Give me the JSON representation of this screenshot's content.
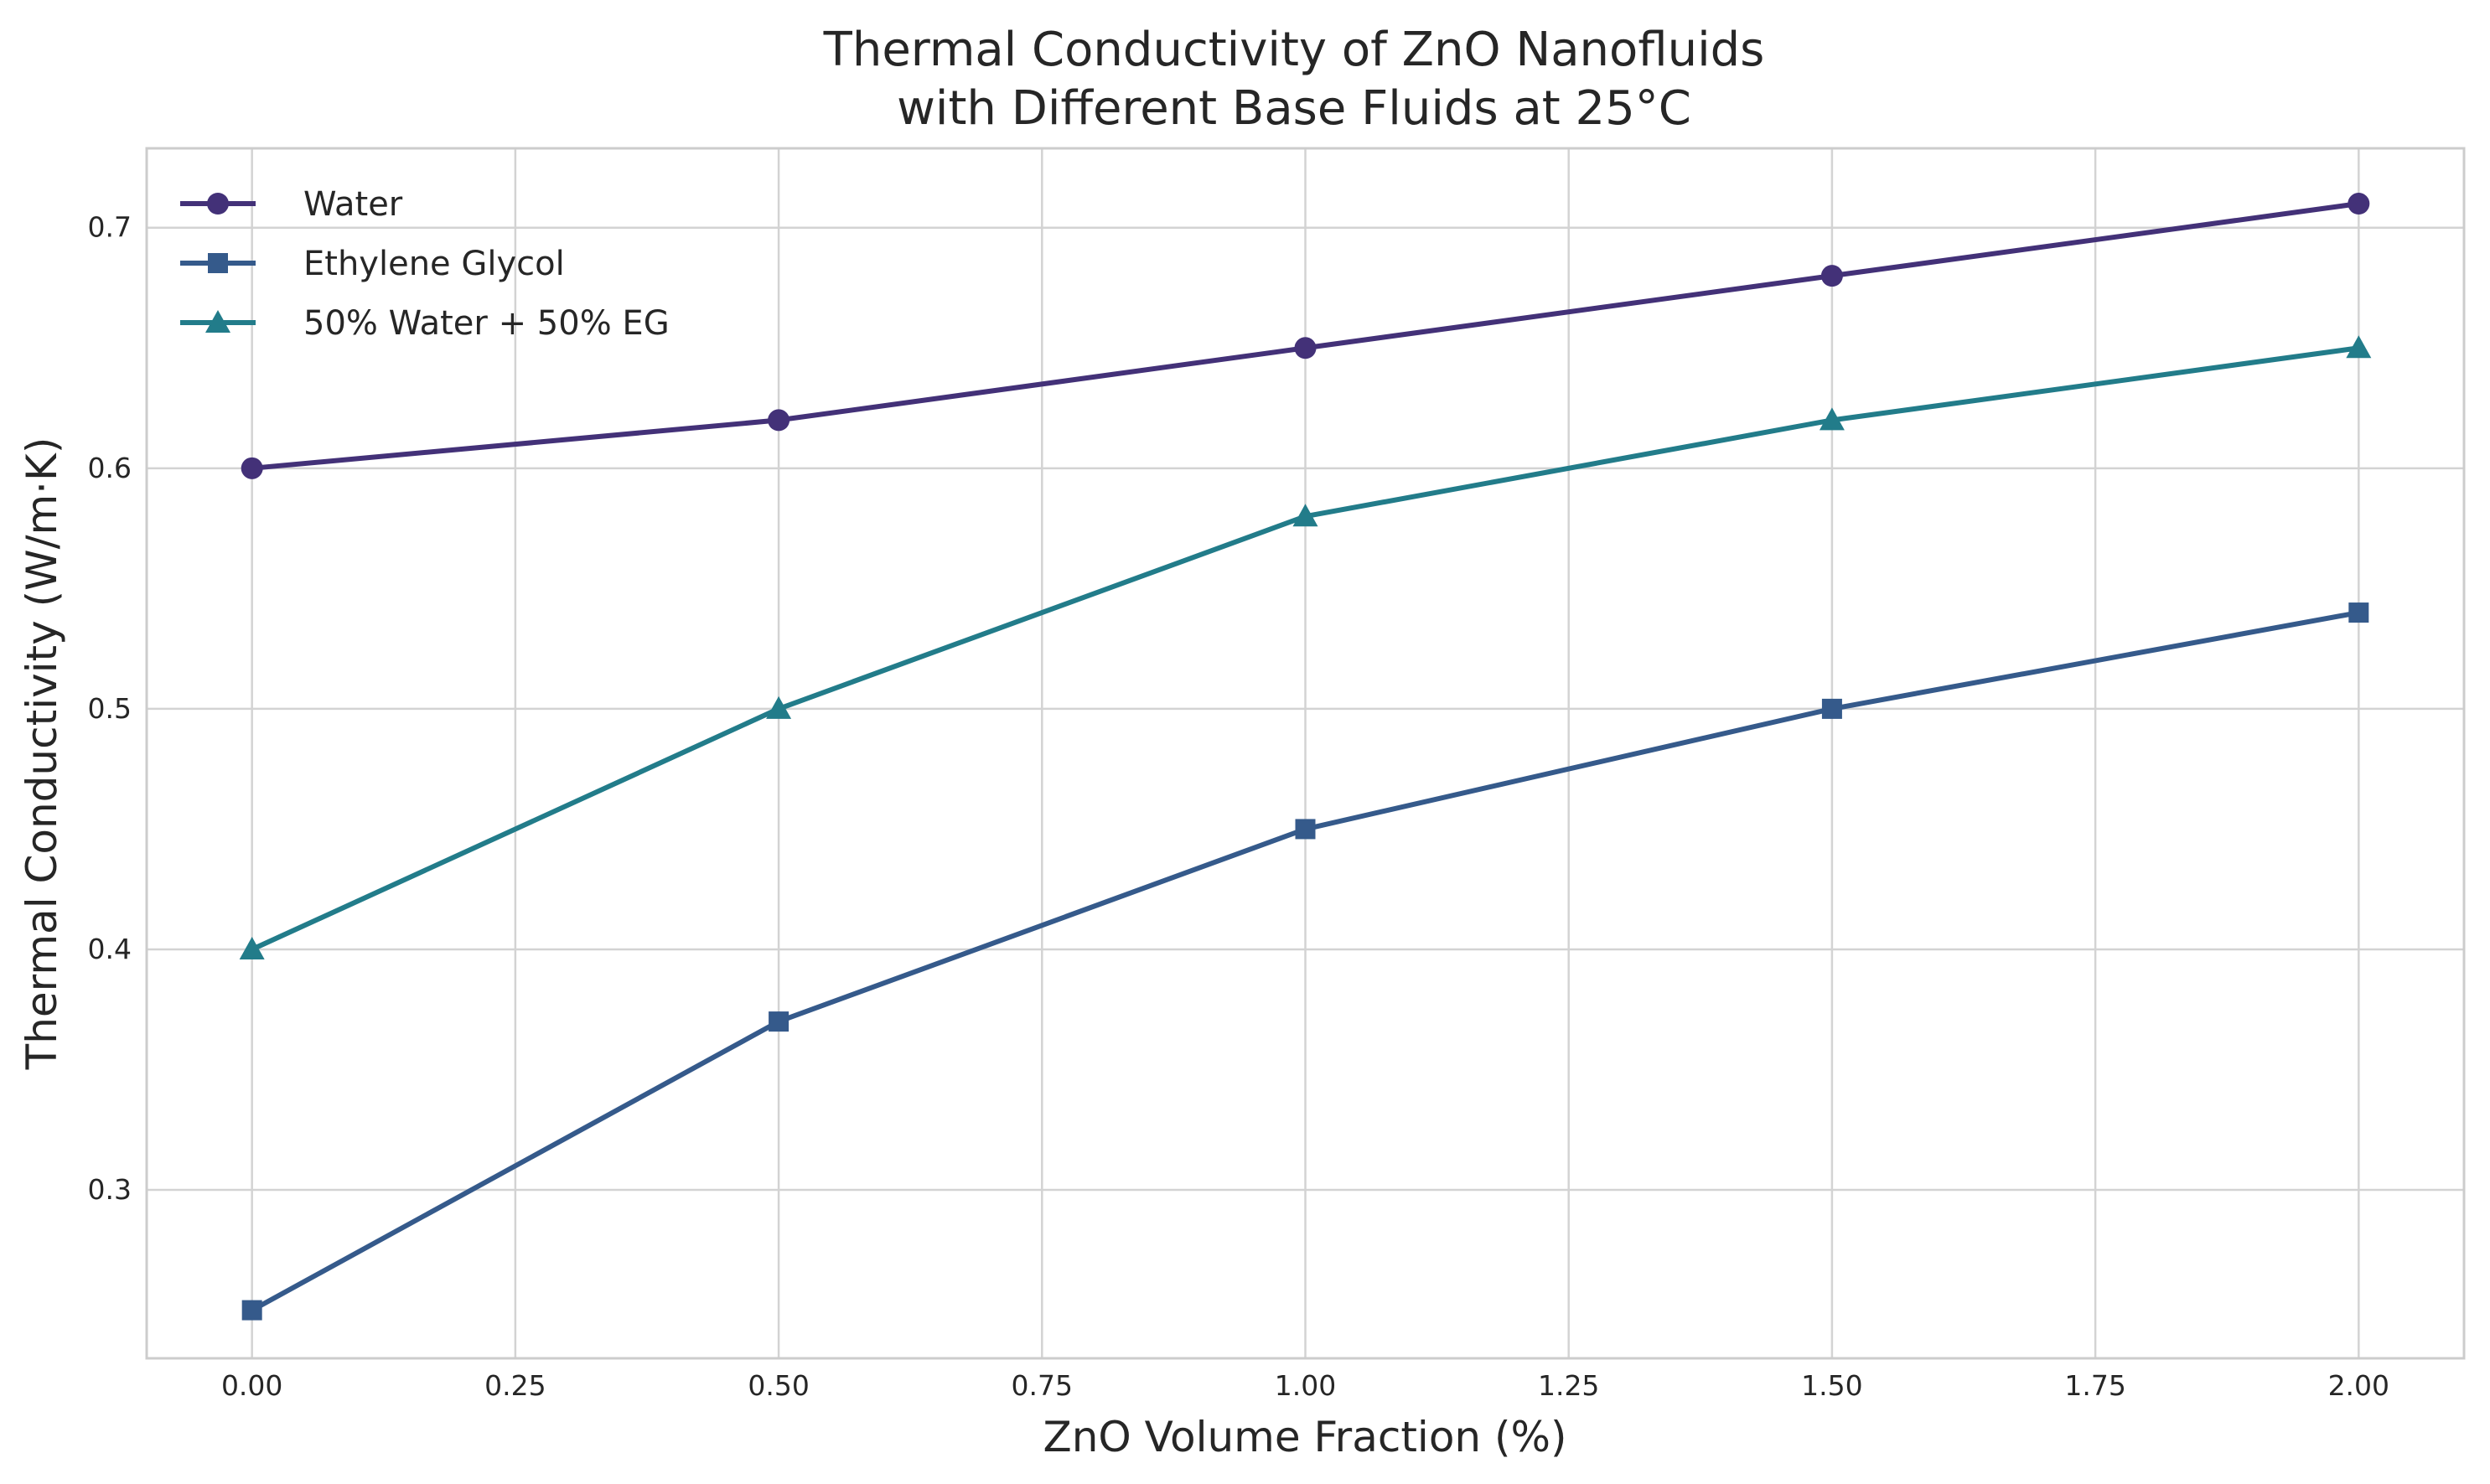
{
  "chart_data": {
    "type": "line",
    "title": "Thermal Conductivity of ZnO Nanofluids",
    "title_line2": "with Different Base Fluids at 25°C",
    "xlabel": "ZnO Volume Fraction (%)",
    "ylabel": "Thermal Conductivity (W/m·K)",
    "x": [
      0.0,
      0.5,
      1.0,
      1.5,
      2.0
    ],
    "xlim": [
      -0.1,
      2.1
    ],
    "ylim": [
      0.23,
      0.733
    ],
    "xticks": [
      0.0,
      0.25,
      0.5,
      0.75,
      1.0,
      1.25,
      1.5,
      1.75,
      2.0
    ],
    "xtick_labels": [
      "0.00",
      "0.25",
      "0.50",
      "0.75",
      "1.00",
      "1.25",
      "1.50",
      "1.75",
      "2.00"
    ],
    "yticks": [
      0.3,
      0.4,
      0.5,
      0.6,
      0.7
    ],
    "ytick_labels": [
      "0.3",
      "0.4",
      "0.5",
      "0.6",
      "0.7"
    ],
    "grid": true,
    "legend_position": "top-left",
    "series": [
      {
        "name": "Water",
        "values": [
          0.6,
          0.62,
          0.65,
          0.68,
          0.71
        ],
        "color": "#433178",
        "marker": "circle"
      },
      {
        "name": "Ethylene Glycol",
        "values": [
          0.25,
          0.37,
          0.45,
          0.5,
          0.54
        ],
        "color": "#355a8b",
        "marker": "square"
      },
      {
        "name": "50% Water + 50% EG",
        "values": [
          0.4,
          0.5,
          0.58,
          0.62,
          0.65
        ],
        "color": "#227c8a",
        "marker": "triangle"
      }
    ]
  }
}
